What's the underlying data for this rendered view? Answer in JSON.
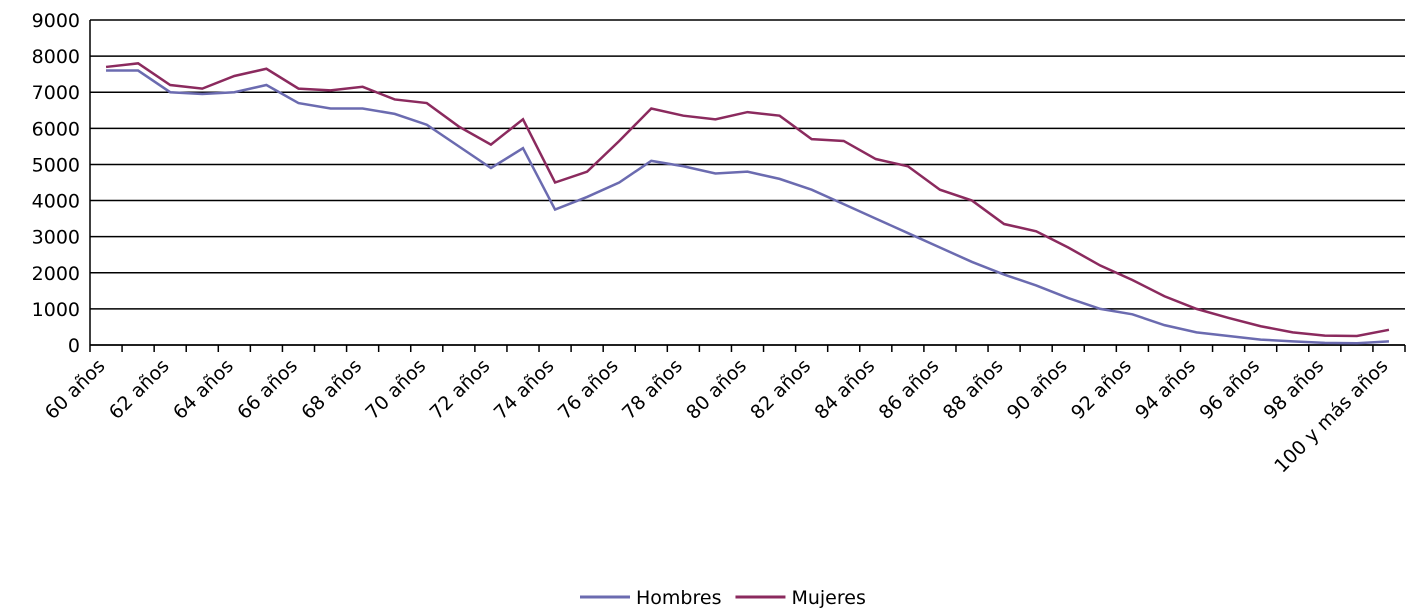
{
  "chart_data": {
    "type": "line",
    "categories": [
      "60 años",
      null,
      "62 años",
      null,
      "64 años",
      null,
      "66 años",
      null,
      "68 años",
      null,
      "70 años",
      null,
      "72 años",
      null,
      "74 años",
      null,
      "76 años",
      null,
      "78 años",
      null,
      "80 años",
      null,
      "82 años",
      null,
      "84 años",
      null,
      "86 años",
      null,
      "88 años",
      null,
      "90 años",
      null,
      "92 años",
      null,
      "94 años",
      null,
      "96 años",
      null,
      "98 años",
      null,
      "100 y más años"
    ],
    "series": [
      {
        "name": "Hombres",
        "color": "#6b6bb0",
        "values": [
          7600,
          7600,
          7000,
          6950,
          7000,
          7200,
          6700,
          6550,
          6550,
          6400,
          6100,
          5500,
          4900,
          5450,
          3750,
          4100,
          4500,
          5100,
          4950,
          4750,
          4800,
          4600,
          4300,
          3900,
          3500,
          3100,
          2700,
          2300,
          1950,
          1650,
          1300,
          1000,
          850,
          550,
          350,
          250,
          150,
          100,
          60,
          50,
          100
        ]
      },
      {
        "name": "Mujeres",
        "color": "#8b2a5e",
        "values": [
          7700,
          7800,
          7200,
          7100,
          7450,
          7650,
          7100,
          7050,
          7150,
          6800,
          6700,
          6050,
          5550,
          6250,
          4500,
          4800,
          5650,
          6550,
          6350,
          6250,
          6450,
          6350,
          5700,
          5650,
          5150,
          4950,
          4300,
          4000,
          3350,
          3150,
          2700,
          2200,
          1800,
          1350,
          1000,
          750,
          520,
          350,
          260,
          250,
          420
        ]
      }
    ],
    "ylim": [
      0,
      9000
    ],
    "yticks": [
      0,
      1000,
      2000,
      3000,
      4000,
      5000,
      6000,
      7000,
      8000,
      9000
    ],
    "grid": true,
    "legend": "bottom"
  }
}
